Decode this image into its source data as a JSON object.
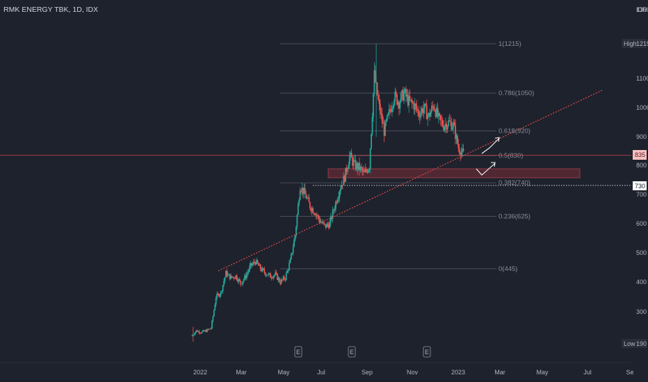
{
  "header": {
    "title": "RMK ENERGY TBK, 1D, IDX"
  },
  "chart_data": {
    "type": "candlestick",
    "currency": "IDR",
    "x_ticks": [
      "2022",
      "Mar",
      "May",
      "Jul",
      "Sep",
      "Nov",
      "2023",
      "Mar",
      "May",
      "Jul",
      "Se"
    ],
    "y_ticks": [
      1300,
      1100,
      1000,
      900,
      800,
      700,
      600,
      500,
      400,
      300
    ],
    "ylim": [
      180,
      1320
    ],
    "price_labels": {
      "high": {
        "label": "High",
        "value": "1215"
      },
      "low": {
        "label": "Low",
        "value": "190"
      },
      "last": {
        "value": "835"
      },
      "level": {
        "value": "730"
      }
    },
    "fibonacci": [
      {
        "label": "1(1215)",
        "value": 1215
      },
      {
        "label": "0.786(1050)",
        "value": 1050
      },
      {
        "label": "0.618(920)",
        "value": 920
      },
      {
        "label": "0.5(830)",
        "value": 830
      },
      {
        "label": "0.382(740)",
        "value": 740
      },
      {
        "label": "0.236(625)",
        "value": 625
      },
      {
        "label": "0(445)",
        "value": 445
      }
    ],
    "earnings_markers": [
      "E",
      "E",
      "E"
    ],
    "closes": [
      {
        "d": "2021-12-20",
        "c": 210
      },
      {
        "d": "2021-12-27",
        "c": 230
      },
      {
        "d": "2022-01-03",
        "c": 225
      },
      {
        "d": "2022-01-10",
        "c": 230
      },
      {
        "d": "2022-01-17",
        "c": 240
      },
      {
        "d": "2022-01-24",
        "c": 350
      },
      {
        "d": "2022-01-31",
        "c": 365
      },
      {
        "d": "2022-02-07",
        "c": 430
      },
      {
        "d": "2022-02-14",
        "c": 415
      },
      {
        "d": "2022-02-21",
        "c": 420
      },
      {
        "d": "2022-02-28",
        "c": 395
      },
      {
        "d": "2022-03-07",
        "c": 420
      },
      {
        "d": "2022-03-14",
        "c": 455
      },
      {
        "d": "2022-03-21",
        "c": 470
      },
      {
        "d": "2022-03-28",
        "c": 445
      },
      {
        "d": "2022-04-04",
        "c": 430
      },
      {
        "d": "2022-04-11",
        "c": 420
      },
      {
        "d": "2022-04-18",
        "c": 425
      },
      {
        "d": "2022-04-25",
        "c": 400
      },
      {
        "d": "2022-05-02",
        "c": 415
      },
      {
        "d": "2022-05-09",
        "c": 470
      },
      {
        "d": "2022-05-16",
        "c": 560
      },
      {
        "d": "2022-05-23",
        "c": 730
      },
      {
        "d": "2022-05-30",
        "c": 700
      },
      {
        "d": "2022-06-06",
        "c": 660
      },
      {
        "d": "2022-06-13",
        "c": 640
      },
      {
        "d": "2022-06-20",
        "c": 610
      },
      {
        "d": "2022-06-27",
        "c": 590
      },
      {
        "d": "2022-07-04",
        "c": 600
      },
      {
        "d": "2022-07-11",
        "c": 660
      },
      {
        "d": "2022-07-18",
        "c": 720
      },
      {
        "d": "2022-07-25",
        "c": 760
      },
      {
        "d": "2022-08-01",
        "c": 830
      },
      {
        "d": "2022-08-08",
        "c": 800
      },
      {
        "d": "2022-08-15",
        "c": 790
      },
      {
        "d": "2022-08-22",
        "c": 770
      },
      {
        "d": "2022-08-29",
        "c": 800
      },
      {
        "d": "2022-09-05",
        "c": 1110
      },
      {
        "d": "2022-09-12",
        "c": 1000
      },
      {
        "d": "2022-09-19",
        "c": 920
      },
      {
        "d": "2022-09-26",
        "c": 980
      },
      {
        "d": "2022-10-03",
        "c": 1040
      },
      {
        "d": "2022-10-10",
        "c": 1020
      },
      {
        "d": "2022-10-17",
        "c": 1050
      },
      {
        "d": "2022-10-24",
        "c": 1020
      },
      {
        "d": "2022-10-31",
        "c": 1010
      },
      {
        "d": "2022-11-07",
        "c": 980
      },
      {
        "d": "2022-11-14",
        "c": 1000
      },
      {
        "d": "2022-11-21",
        "c": 970
      },
      {
        "d": "2022-11-28",
        "c": 1010
      },
      {
        "d": "2022-12-05",
        "c": 960
      },
      {
        "d": "2022-12-12",
        "c": 940
      },
      {
        "d": "2022-12-19",
        "c": 950
      },
      {
        "d": "2022-12-26",
        "c": 940
      },
      {
        "d": "2023-01-02",
        "c": 860
      },
      {
        "d": "2023-01-09",
        "c": 835
      }
    ],
    "colors": {
      "up": "#26a69a",
      "down": "#ef5350",
      "trendline": "#e04a4a",
      "zone": "#7a2e38"
    }
  }
}
